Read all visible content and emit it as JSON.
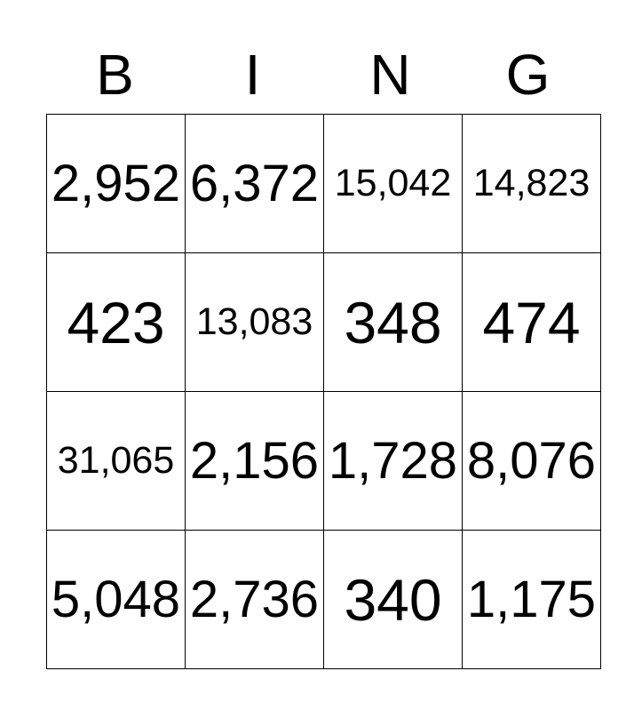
{
  "card": {
    "letters": [
      "B",
      "I",
      "N",
      "G"
    ],
    "rows": [
      [
        "2,952",
        "6,372",
        "15,042",
        "14,823"
      ],
      [
        "423",
        "13,083",
        "348",
        "474"
      ],
      [
        "31,065",
        "2,156",
        "1,728",
        "8,076"
      ],
      [
        "5,048",
        "2,736",
        "340",
        "1,175"
      ]
    ]
  },
  "colors": {
    "background": "#ffffff",
    "text": "#000000",
    "border": "#000000"
  }
}
